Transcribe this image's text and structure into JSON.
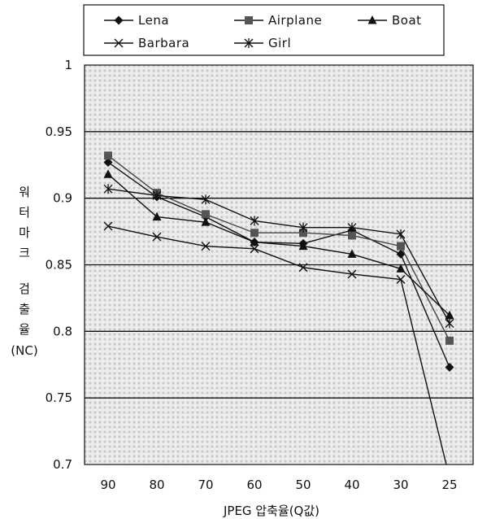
{
  "chart_data": {
    "type": "line",
    "title": "",
    "xlabel": "JPEG 압축율(Q값)",
    "ylabel_lines": [
      "워",
      "터",
      "마",
      "크",
      "",
      "검",
      "출",
      "율",
      "(NC)"
    ],
    "categories": [
      "90",
      "80",
      "70",
      "60",
      "50",
      "40",
      "30",
      "25"
    ],
    "ylim": [
      0.7,
      1.0
    ],
    "yticks": [
      0.7,
      0.75,
      0.8,
      0.85,
      0.9,
      0.95,
      1.0
    ],
    "ytick_labels": [
      "0.7",
      "0.75",
      "0.8",
      "0.85",
      "0.9",
      "0.95",
      "1"
    ],
    "grid": true,
    "legend_position": "top",
    "series": [
      {
        "name": "Lena",
        "marker": "diamond",
        "values": [
          0.927,
          0.901,
          0.886,
          0.867,
          0.866,
          0.876,
          0.858,
          0.773
        ]
      },
      {
        "name": "Airplane",
        "marker": "square",
        "values": [
          0.932,
          0.904,
          0.888,
          0.874,
          0.874,
          0.872,
          0.864,
          0.793
        ]
      },
      {
        "name": "Boat",
        "marker": "triangle",
        "values": [
          0.918,
          0.886,
          0.882,
          0.867,
          0.864,
          0.858,
          0.847,
          0.812
        ]
      },
      {
        "name": "Barbara",
        "marker": "x",
        "values": [
          0.879,
          0.871,
          0.864,
          0.862,
          0.848,
          0.843,
          0.839,
          0.69
        ]
      },
      {
        "name": "Girl",
        "marker": "star",
        "values": [
          0.907,
          0.902,
          0.899,
          0.883,
          0.878,
          0.878,
          0.873,
          0.806
        ]
      }
    ]
  }
}
